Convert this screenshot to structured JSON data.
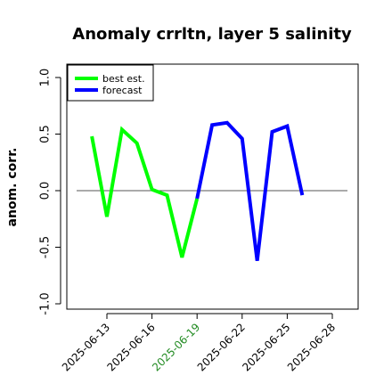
{
  "chart_data": {
    "type": "line",
    "title": "Anomaly crrltn, layer 5 salinity",
    "xlabel": "",
    "ylabel": "anom. corr.",
    "ylim": [
      -1.0,
      1.0
    ],
    "yticks": [
      "-1.0",
      "-0.5",
      "0.0",
      "0.5",
      "1.0"
    ],
    "xticks": [
      "2025-06-13",
      "2025-06-16",
      "2025-06-19",
      "2025-06-22",
      "2025-06-25",
      "2025-06-28"
    ],
    "highlighted_xtick": "2025-06-19",
    "highlight_color": "#228B22",
    "reference_line": 0.0,
    "legend": {
      "placement": "top-left"
    },
    "series": [
      {
        "name": "best est.",
        "color": "#00ff00",
        "x": [
          "2025-06-12",
          "2025-06-13",
          "2025-06-14",
          "2025-06-15",
          "2025-06-16",
          "2025-06-17",
          "2025-06-18",
          "2025-06-19"
        ],
        "values": [
          0.48,
          -0.23,
          0.54,
          0.42,
          0.01,
          -0.04,
          -0.59,
          -0.07
        ]
      },
      {
        "name": "forecast",
        "color": "#0000ff",
        "x": [
          "2025-06-19",
          "2025-06-20",
          "2025-06-21",
          "2025-06-22",
          "2025-06-23",
          "2025-06-24",
          "2025-06-25",
          "2025-06-26"
        ],
        "values": [
          -0.07,
          0.58,
          0.6,
          0.46,
          -0.62,
          0.52,
          0.57,
          -0.04
        ]
      }
    ]
  }
}
